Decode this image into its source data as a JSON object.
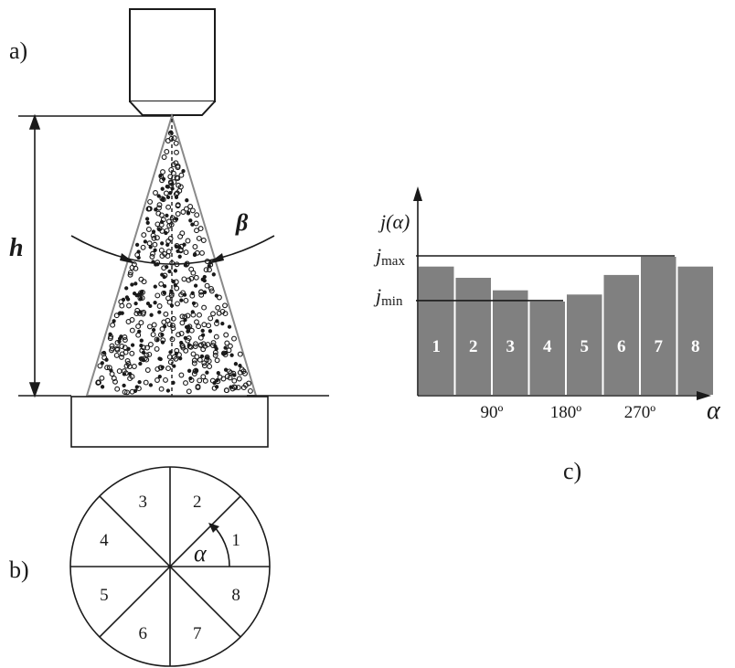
{
  "labels": {
    "panel_a": "a)",
    "panel_b": "b)",
    "panel_c": "c)",
    "height": "h",
    "angle_beta": "β",
    "angle_alpha": "α",
    "axis_x": "α",
    "axis_y": "j(α)",
    "j_max_base": "j",
    "j_max_sub": "max",
    "j_min_base": "j",
    "j_min_sub": "min"
  },
  "sectors": [
    "1",
    "2",
    "3",
    "4",
    "5",
    "6",
    "7",
    "8"
  ],
  "chart_data": {
    "type": "bar",
    "categories": [
      "1",
      "2",
      "3",
      "4",
      "5",
      "6",
      "7",
      "8"
    ],
    "values": [
      0.93,
      0.85,
      0.76,
      0.68,
      0.73,
      0.87,
      1.0,
      0.93
    ],
    "x_ticks": [
      "90º",
      "180º",
      "270º"
    ],
    "xlabel": "α",
    "ylabel": "j(α)",
    "reference_lines": [
      "j max",
      "j min"
    ],
    "colors": {
      "bar": "#808080",
      "bar_outline": "#ffffff",
      "axis": "#1a1a1a"
    }
  }
}
